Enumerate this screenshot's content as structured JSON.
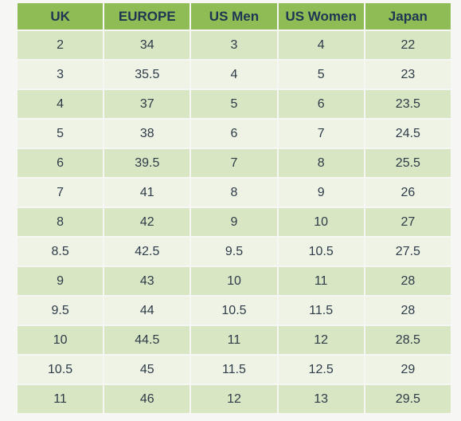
{
  "table": {
    "header": [
      "UK",
      "EUROPE",
      "US Men",
      "US Women",
      "Japan"
    ],
    "rows": [
      [
        2,
        34,
        3,
        4,
        22
      ],
      [
        3,
        35.5,
        4,
        5,
        23
      ],
      [
        4,
        37,
        5,
        6,
        23.5
      ],
      [
        5,
        38,
        6,
        7,
        24.5
      ],
      [
        6,
        39.5,
        7,
        8,
        25.5
      ],
      [
        7,
        41,
        8,
        9,
        26
      ],
      [
        8,
        42,
        9,
        10,
        27
      ],
      [
        8.5,
        42.5,
        9.5,
        10.5,
        27.5
      ],
      [
        9,
        43,
        10,
        11,
        28
      ],
      [
        9.5,
        44,
        10.5,
        11.5,
        28
      ],
      [
        10,
        44.5,
        11,
        12,
        28.5
      ],
      [
        10.5,
        45,
        11.5,
        12.5,
        29
      ],
      [
        11,
        46,
        12,
        13,
        29.5
      ]
    ]
  }
}
